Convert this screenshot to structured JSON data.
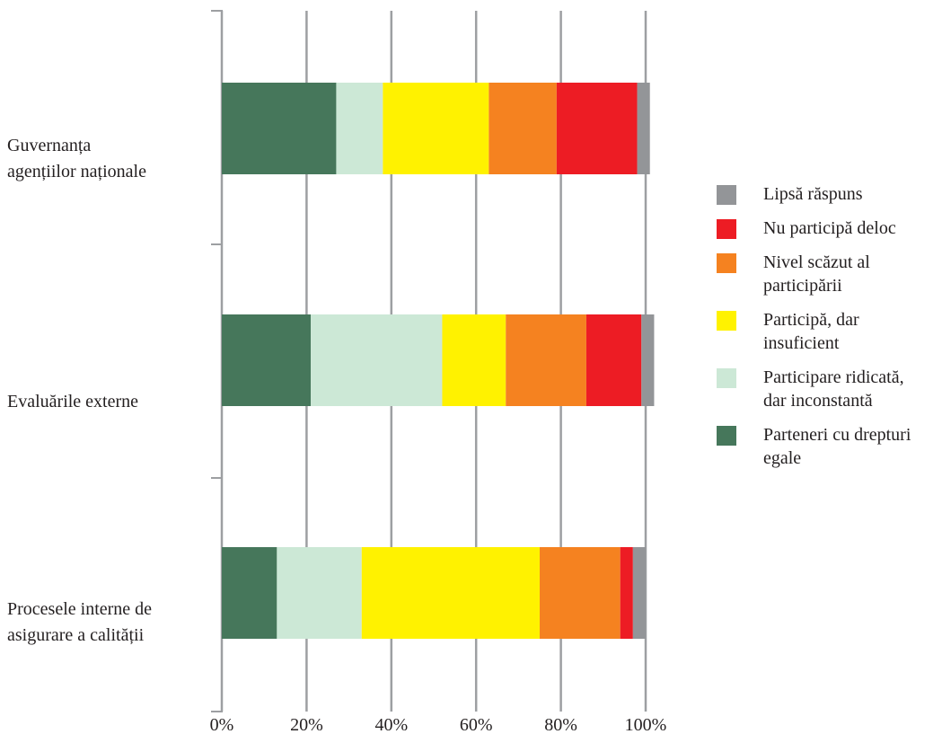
{
  "chart_data": {
    "type": "bar",
    "orientation": "horizontal",
    "stacked": true,
    "categories": [
      [
        "Guvernanța",
        "agențiilor naționale"
      ],
      [
        "Evaluările externe"
      ],
      [
        "Procesele interne de",
        "asigurare a calității"
      ]
    ],
    "series": [
      {
        "name": "Parteneri cu drepturi egale",
        "color": "#46775b",
        "values": [
          27,
          21,
          13
        ]
      },
      {
        "name": "Participare ridicată, dar inconstantă",
        "color": "#cce8d6",
        "values": [
          11,
          31,
          20
        ]
      },
      {
        "name": "Participă, dar insuficient",
        "color": "#fff200",
        "values": [
          25,
          15,
          42
        ]
      },
      {
        "name": "Nivel scăzut al participării",
        "color": "#f58220",
        "values": [
          16,
          19,
          19
        ]
      },
      {
        "name": "Nu participă deloc",
        "color": "#ed1c24",
        "values": [
          19,
          13,
          3
        ]
      },
      {
        "name": "Lipsă răspuns",
        "color": "#939598",
        "values": [
          3,
          3,
          3
        ]
      }
    ],
    "x_ticks": [
      "0%",
      "20%",
      "40%",
      "60%",
      "80%",
      "100%"
    ],
    "xlim": [
      0,
      100
    ],
    "grid": "vertical",
    "legend_position": "right",
    "legend_order": [
      [
        "Lipsă răspuns"
      ],
      [
        "Nu participă deloc"
      ],
      [
        "Nivel scăzut al",
        "participării"
      ],
      [
        "Participă, dar",
        "insuficient"
      ],
      [
        "Participare ridicată,",
        "dar inconstantă"
      ],
      [
        "Parteneri cu drepturi",
        "egale"
      ]
    ],
    "legend_colors": [
      "#939598",
      "#ed1c24",
      "#f58220",
      "#fff200",
      "#cce8d6",
      "#46775b"
    ]
  }
}
